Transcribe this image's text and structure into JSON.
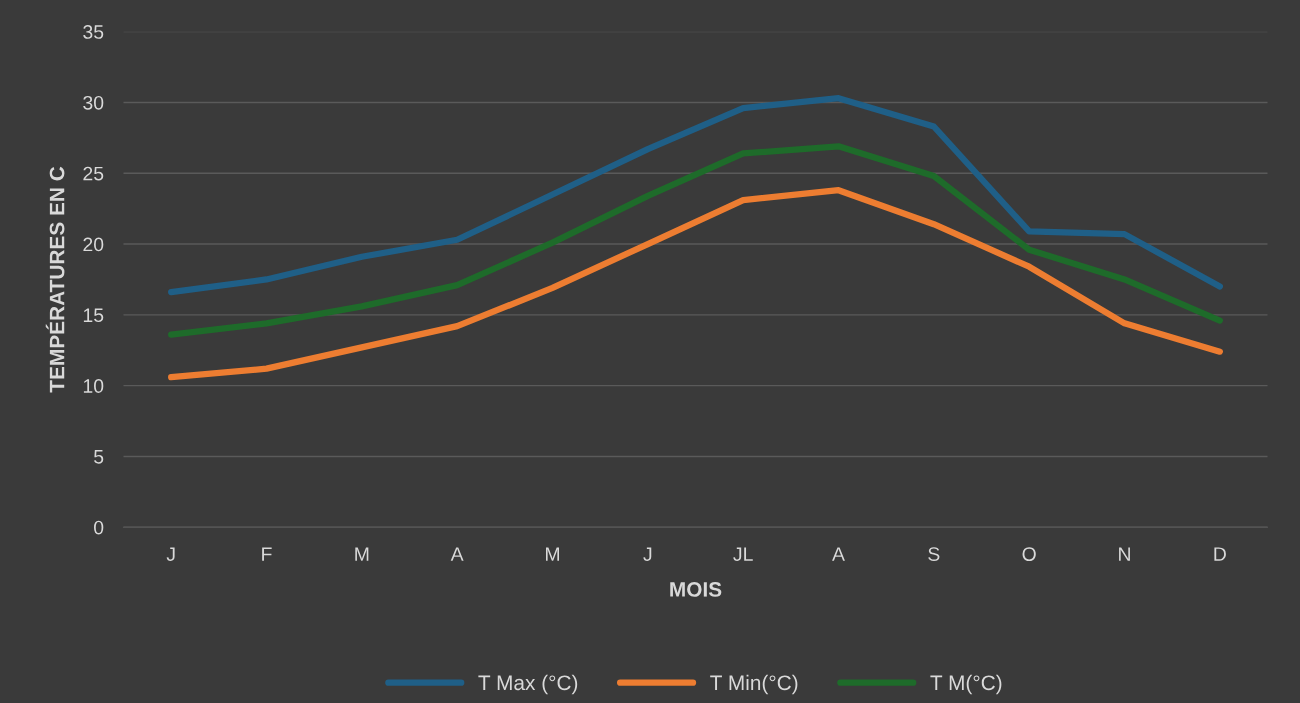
{
  "chart_data": {
    "type": "line",
    "xlabel": "MOIS",
    "ylabel": "TEMPÉRATURES EN C",
    "categories": [
      "J",
      "F",
      "M",
      "A",
      "M",
      "J",
      "JL",
      "A",
      "S",
      "O",
      "N",
      "D"
    ],
    "series": [
      {
        "name": "T Max (°C)",
        "color": "#1f5f87",
        "values": [
          16.6,
          17.5,
          19.1,
          20.3,
          23.5,
          26.7,
          29.6,
          30.3,
          28.3,
          20.9,
          20.7,
          17.0
        ]
      },
      {
        "name": "T Min(°C)",
        "color": "#ed7d31",
        "values": [
          10.6,
          11.2,
          12.7,
          14.2,
          16.9,
          20.0,
          23.1,
          23.8,
          21.4,
          18.4,
          14.4,
          12.4
        ]
      },
      {
        "name": "T M(°C)",
        "color": "#1e6b2a",
        "values": [
          13.6,
          14.4,
          15.6,
          17.1,
          20.1,
          23.4,
          26.4,
          26.9,
          24.8,
          19.6,
          17.5,
          14.6
        ]
      }
    ],
    "ylim": [
      0,
      35
    ],
    "yticks": [
      0,
      5,
      10,
      15,
      20,
      25,
      30,
      35
    ],
    "grid": "y",
    "legend": "bottom",
    "marker": "none",
    "line_style": "solid"
  }
}
